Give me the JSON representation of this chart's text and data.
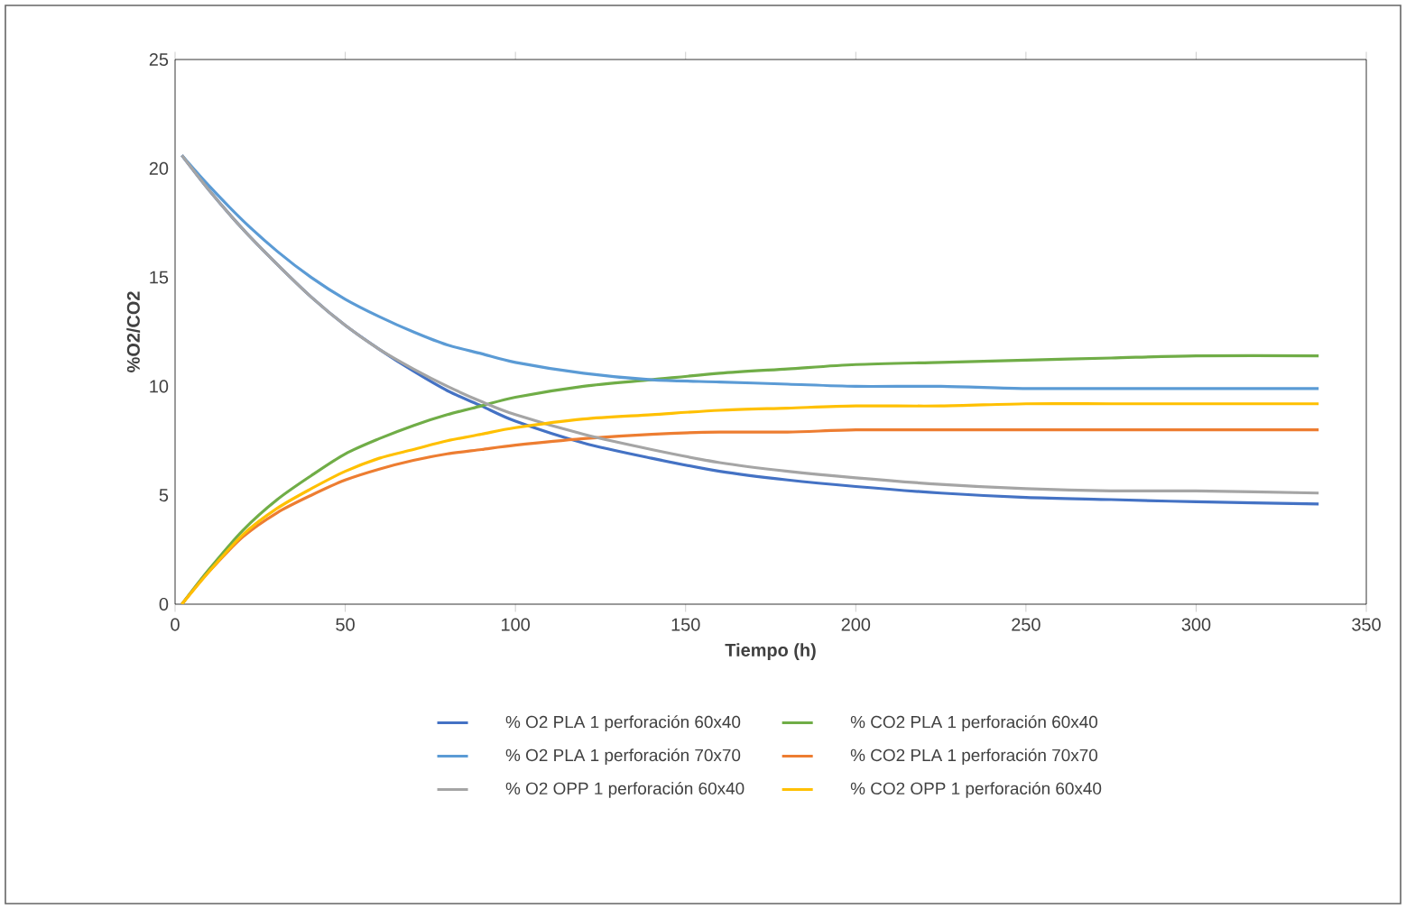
{
  "chart_data": {
    "type": "line",
    "xlabel": "Tiempo (h)",
    "ylabel": "%O2/CO2",
    "x": [
      2,
      10,
      20,
      30,
      40,
      50,
      60,
      70,
      80,
      90,
      100,
      120,
      140,
      160,
      180,
      200,
      225,
      250,
      275,
      300,
      336
    ],
    "series": [
      {
        "name": "% O2 PLA 1 perforación 60x40",
        "color": "#4472c4",
        "values": [
          20.6,
          19.0,
          17.2,
          15.6,
          14.1,
          12.8,
          11.7,
          10.7,
          9.8,
          9.1,
          8.4,
          7.4,
          6.7,
          6.1,
          5.7,
          5.4,
          5.1,
          4.9,
          4.8,
          4.7,
          4.6
        ]
      },
      {
        "name": "% CO2 PLA 1 perforación 60x40",
        "color": "#70ad47",
        "values": [
          0,
          1.6,
          3.4,
          4.8,
          5.9,
          6.9,
          7.6,
          8.2,
          8.7,
          9.1,
          9.5,
          10.0,
          10.3,
          10.6,
          10.8,
          11.0,
          11.1,
          11.2,
          11.3,
          11.4,
          11.4
        ]
      },
      {
        "name": "% O2 PLA 1 perforación 70x70",
        "color": "#5b9bd5",
        "values": [
          20.6,
          19.2,
          17.6,
          16.2,
          15.0,
          14.0,
          13.2,
          12.5,
          11.9,
          11.5,
          11.1,
          10.6,
          10.3,
          10.2,
          10.1,
          10.0,
          10.0,
          9.9,
          9.9,
          9.9,
          9.9
        ]
      },
      {
        "name": "% CO2 PLA 1 perforación 70x70",
        "color": "#ed7d31",
        "values": [
          0,
          1.5,
          3.1,
          4.2,
          5.0,
          5.7,
          6.2,
          6.6,
          6.9,
          7.1,
          7.3,
          7.6,
          7.8,
          7.9,
          7.9,
          8.0,
          8.0,
          8.0,
          8.0,
          8.0,
          8.0
        ]
      },
      {
        "name": "% O2 OPP 1 perforación 60x40",
        "color": "#a5a5a5",
        "values": [
          20.6,
          19.0,
          17.2,
          15.6,
          14.1,
          12.8,
          11.7,
          10.8,
          10.0,
          9.3,
          8.7,
          7.8,
          7.1,
          6.5,
          6.1,
          5.8,
          5.5,
          5.3,
          5.2,
          5.2,
          5.1
        ]
      },
      {
        "name": "% CO2 OPP 1 perforación 60x40",
        "color": "#ffc000",
        "values": [
          0,
          1.5,
          3.2,
          4.4,
          5.3,
          6.1,
          6.7,
          7.1,
          7.5,
          7.8,
          8.1,
          8.5,
          8.7,
          8.9,
          9.0,
          9.1,
          9.1,
          9.2,
          9.2,
          9.2,
          9.2
        ]
      }
    ],
    "xlim": [
      0,
      350
    ],
    "xticks": [
      0,
      50,
      100,
      150,
      200,
      250,
      300,
      350
    ],
    "ylim": [
      0,
      25
    ],
    "yticks": [
      0,
      5,
      10,
      15,
      20,
      25
    ],
    "grid": false,
    "legend": "bottom",
    "marker": "none",
    "line_style": "solid"
  }
}
